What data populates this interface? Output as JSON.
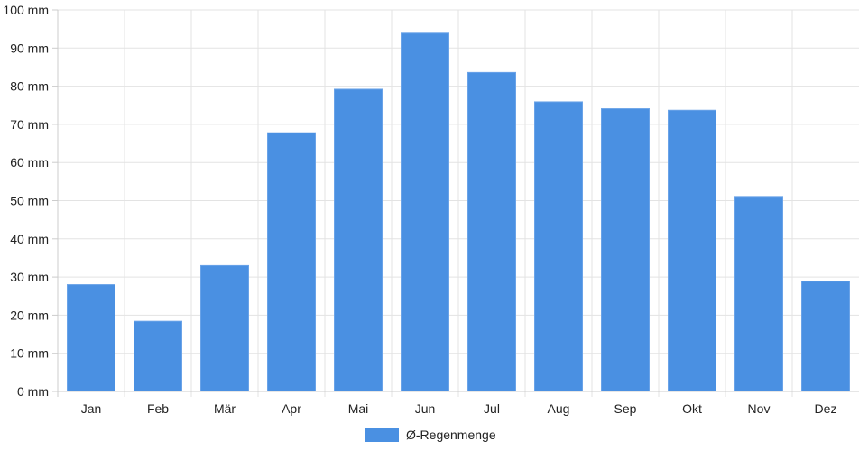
{
  "chart_data": {
    "type": "bar",
    "categories": [
      "Jan",
      "Feb",
      "Mär",
      "Apr",
      "Mai",
      "Jun",
      "Jul",
      "Aug",
      "Sep",
      "Okt",
      "Nov",
      "Dez"
    ],
    "series": [
      {
        "name": "Ø-Regenmenge",
        "color": "#4a90e2",
        "values": [
          28,
          18.4,
          33,
          67.8,
          79.2,
          93.9,
          83.6,
          75.9,
          74.1,
          73.7,
          51.1,
          28.9
        ]
      }
    ],
    "yticks": [
      "0 mm",
      "10 mm",
      "20 mm",
      "30 mm",
      "40 mm",
      "50 mm",
      "60 mm",
      "70 mm",
      "80 mm",
      "90 mm",
      "100 mm"
    ],
    "ylim": [
      0,
      100
    ],
    "grid": true,
    "legend_position": "bottom"
  }
}
